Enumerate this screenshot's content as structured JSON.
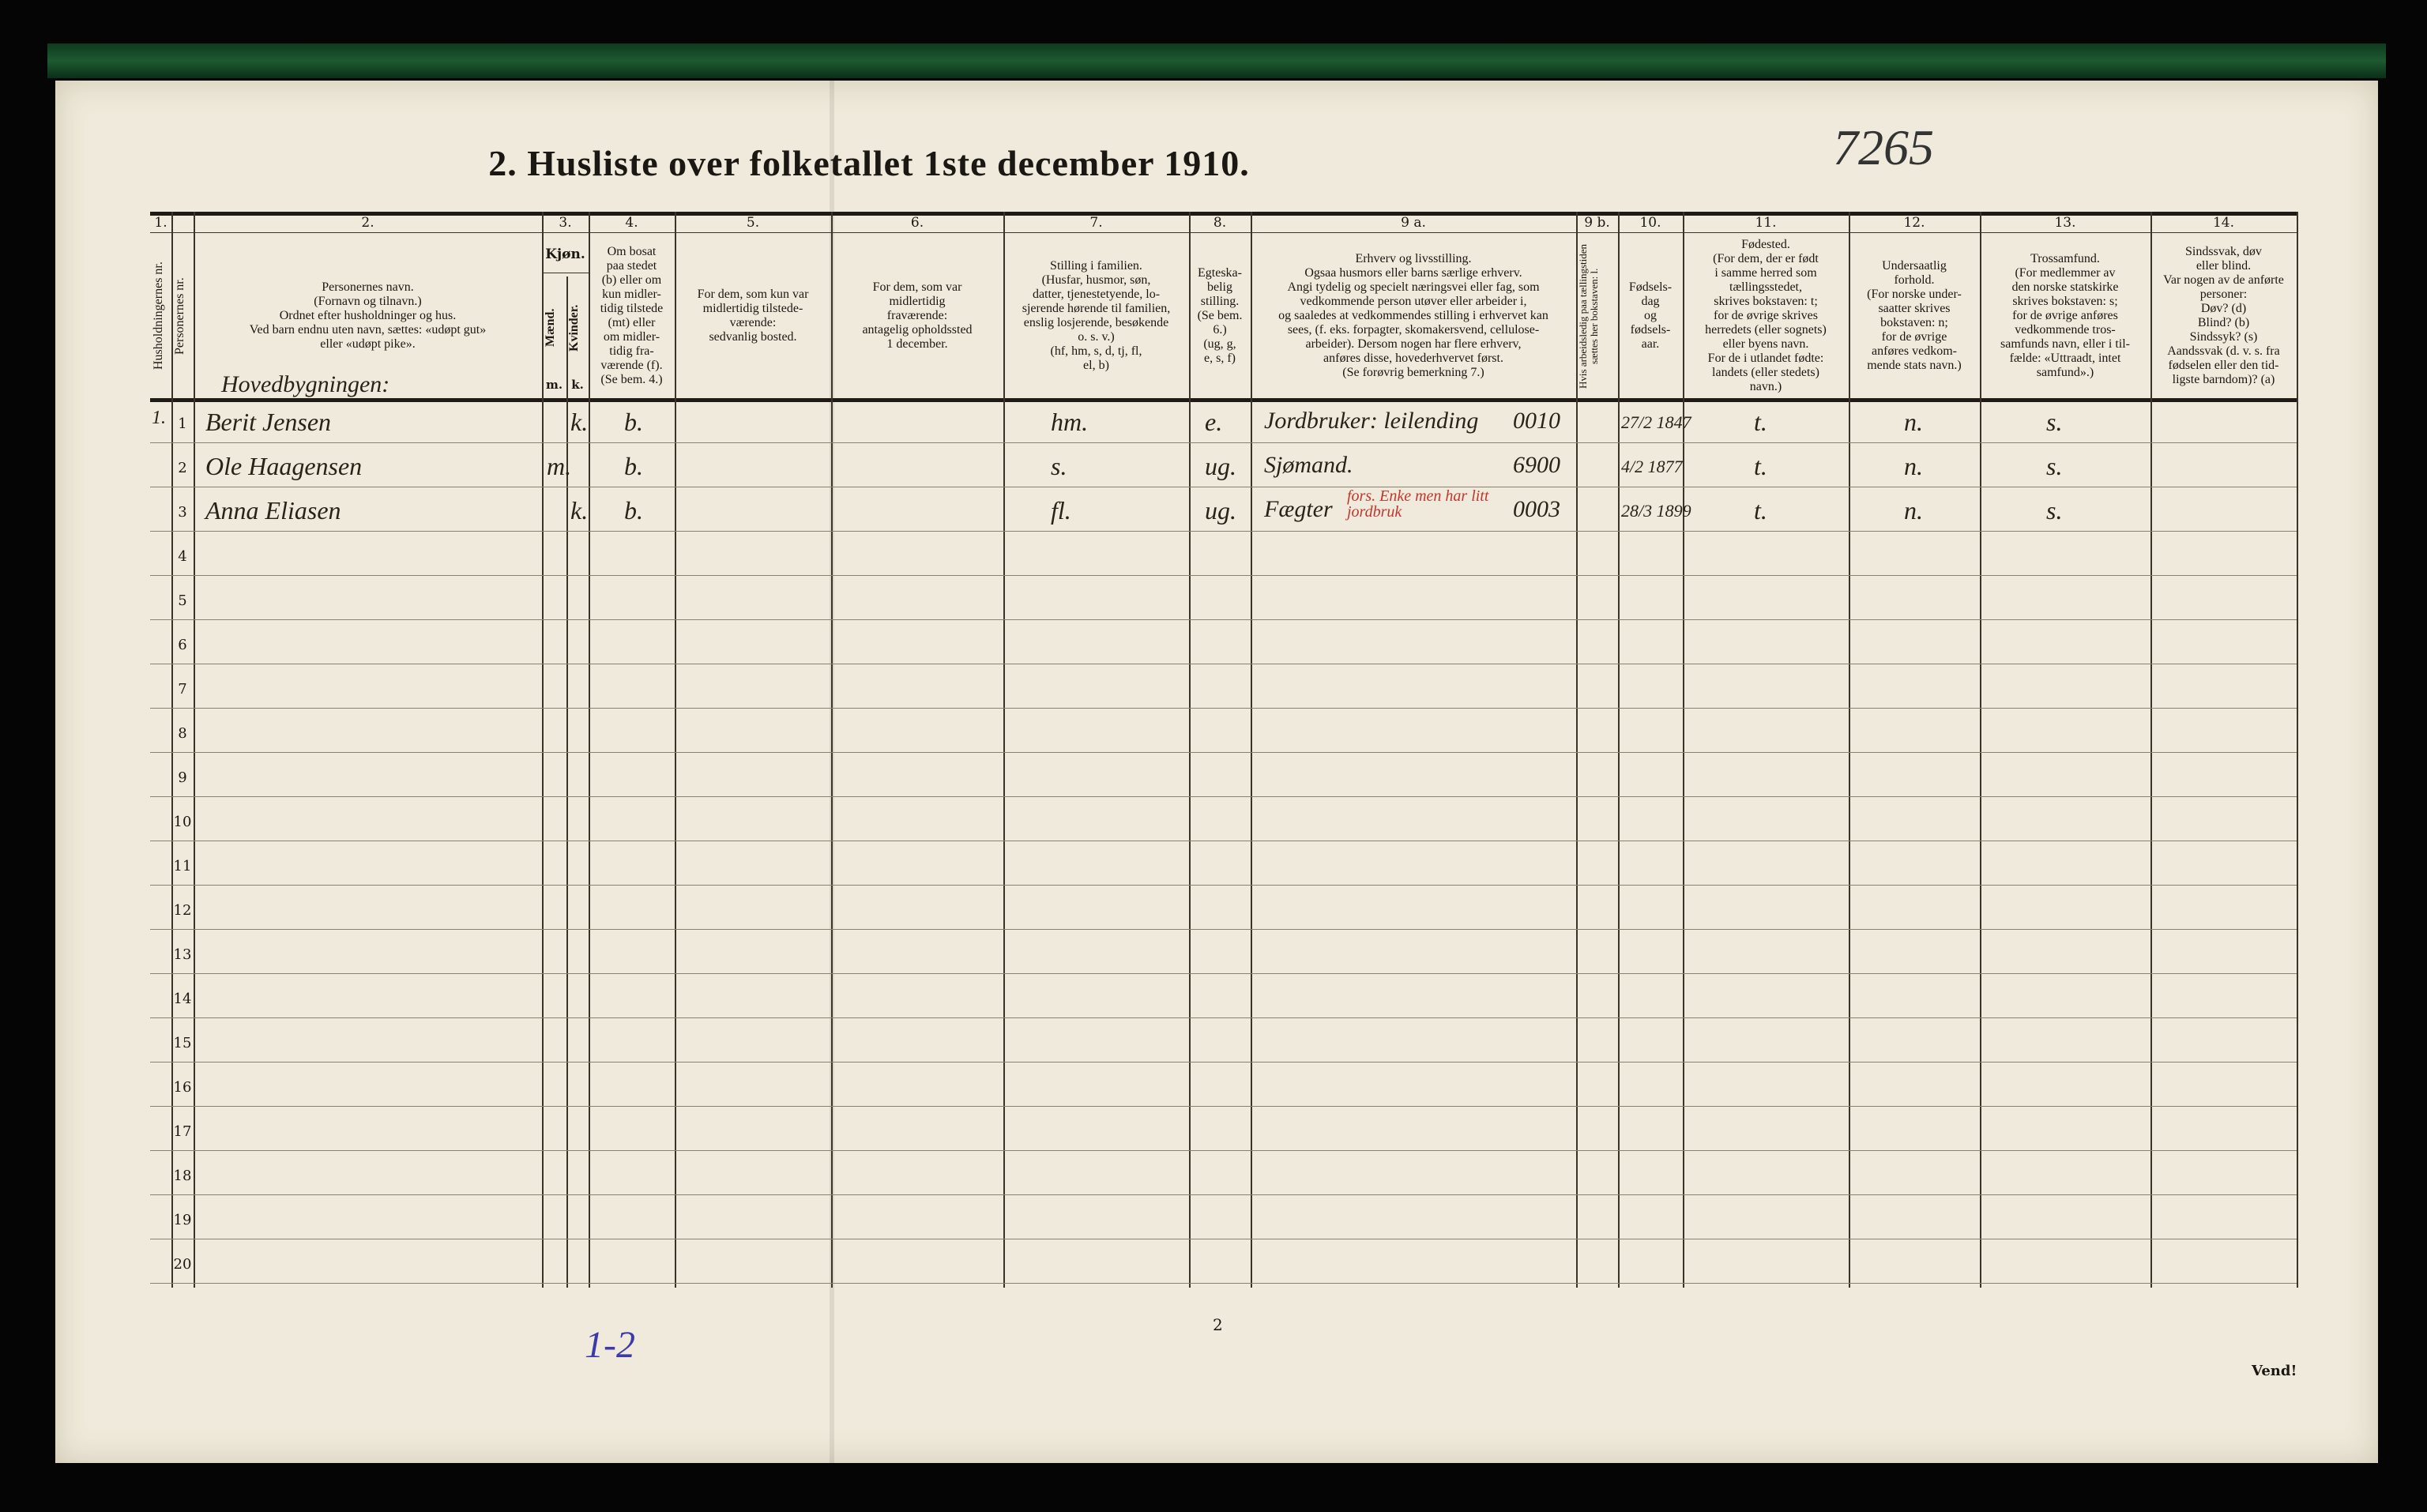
{
  "title": "2.  Husliste over folketallet 1ste december 1910.",
  "document_number": "7265",
  "page_number": "2",
  "margin_note": "1-2",
  "footer": "Vend!",
  "colors": {
    "paper": "#efeadb",
    "ink": "#1b1712",
    "red_ink": "#c2352d",
    "blue_pencil": "#4a4fb0",
    "stripe": "#1d5a30"
  },
  "columns": [
    {
      "num": "1.",
      "head": "Husholdningernes nr.",
      "vertical": true
    },
    {
      "num": "",
      "head": "Personernes nr.",
      "vertical": true
    },
    {
      "num": "2.",
      "head": "Personernes navn.\n(Fornavn og tilnavn.)\nOrdnet efter husholdninger og hus.\nVed barn endnu uten navn, sættes: «udøpt gut»\neller «udøpt pike»."
    },
    {
      "num": "3.",
      "head": "Kjøn.",
      "sub": [
        "Mænd.",
        "Kvinder."
      ],
      "sub_letters": [
        "m.",
        "k."
      ]
    },
    {
      "num": "4.",
      "head": "Om bosat\npaa stedet\n(b) eller om\nkun midler-\ntidig tilstede\n(mt) eller\nom midler-\ntidig fra-\nværende (f).\n(Se bem. 4.)"
    },
    {
      "num": "5.",
      "head": "For dem, som kun var\nmidlertidig tilstede-\nværende:\nsedvanlig bosted."
    },
    {
      "num": "6.",
      "head": "For dem, som var\nmidlertidig\nfraværende:\nantagelig opholdssted\n1 december."
    },
    {
      "num": "7.",
      "head": "Stilling i familien.\n(Husfar, husmor, søn,\ndatter, tjenestetyende, lo-\nsjerende hørende til familien,\nenslig losjerende, besøkende\no. s. v.)\n(hf, hm, s, d, tj, fl,\nel, b)"
    },
    {
      "num": "8.",
      "head": "Egteska-\nbelig\nstilling.\n(Se bem. 6.)\n(ug, g,\ne, s, f)"
    },
    {
      "num": "9 a.",
      "head": "Erhverv og livsstilling.\nOgsaa husmors eller barns særlige erhverv.\nAngi tydelig og specielt næringsvei eller fag, som\nvedkommende person utøver eller arbeider i,\nog saaledes at vedkommendes stilling i erhvervet kan\nsees, (f. eks. forpagter, skomakersvend, cellulose-\narbeider). Dersom nogen har flere erhverv,\nanføres disse, hovederhvervet først.\n(Se forøvrig bemerkning 7.)"
    },
    {
      "num": "9 b.",
      "head": "Hvis arbeidsledig paa tællingstiden sættes her bokstaven: l.",
      "vertical": true
    },
    {
      "num": "10.",
      "head": "Fødsels-\ndag\nog\nfødsels-\naar."
    },
    {
      "num": "11.",
      "head": "Fødested.\n(For dem, der er født\ni samme herred som\ntællingsstedet,\nskrives bokstaven: t;\nfor de øvrige skrives\nherredets (eller sognets)\neller byens navn.\nFor de i utlandet fødte:\nlandets (eller stedets)\nnavn.)"
    },
    {
      "num": "12.",
      "head": "Undersaatlig\nforhold.\n(For norske under-\nsaatter skrives\nbokstaven: n;\nfor de øvrige\nanføres vedkom-\nmende stats navn.)"
    },
    {
      "num": "13.",
      "head": "Trossamfund.\n(For medlemmer av\nden norske statskirke\nskrives bokstaven: s;\nfor de øvrige anføres\nvedkommende tros-\nsamfunds navn, eller i til-\nfælde: «Uttraadt, intet\nsamfund».)"
    },
    {
      "num": "14.",
      "head": "Sindssvak, døv\neller blind.\nVar nogen av de anførte\npersoner:\nDøv?  (d)\nBlind?  (b)\nSindssyk?  (s)\nAandssvak (d. v. s. fra\nfødselen eller den tid-\nligste barndom)?  (a)"
    }
  ],
  "row_numbers": [
    "1",
    "2",
    "3",
    "4",
    "5",
    "6",
    "7",
    "8",
    "9",
    "10",
    "11",
    "12",
    "13",
    "14",
    "15",
    "16",
    "17",
    "18",
    "19",
    "20"
  ],
  "building_label": "Hovedbygningen:",
  "entries": [
    {
      "household": "1.",
      "name": "Berit Jensen",
      "sex": "k.",
      "residence": "b.",
      "family_position": "hm.",
      "marital": "e.",
      "occupation": "Jordbruker: leilending",
      "occ_code": "0010",
      "birth": "27/2 1847",
      "birthplace": "t.",
      "citizenship": "n.",
      "religion": "s."
    },
    {
      "household": "",
      "name": "Ole Haagensen",
      "sex": "m.",
      "residence": "b.",
      "family_position": "s.",
      "marital": "ug.",
      "occupation": "Sjømand.",
      "occ_code": "6900",
      "birth": "4/2 1877",
      "birthplace": "t.",
      "citizenship": "n.",
      "religion": "s."
    },
    {
      "household": "",
      "name": "Anna Eliasen",
      "sex": "k.",
      "residence": "b.",
      "family_position": "fl.",
      "marital": "ug.",
      "occupation": "Fægter",
      "occ_note": "fors. Enke men har litt jordbruk",
      "occ_code": "0003",
      "birth": "28/3 1899",
      "birthplace": "t.",
      "citizenship": "n.",
      "religion": "s."
    }
  ]
}
